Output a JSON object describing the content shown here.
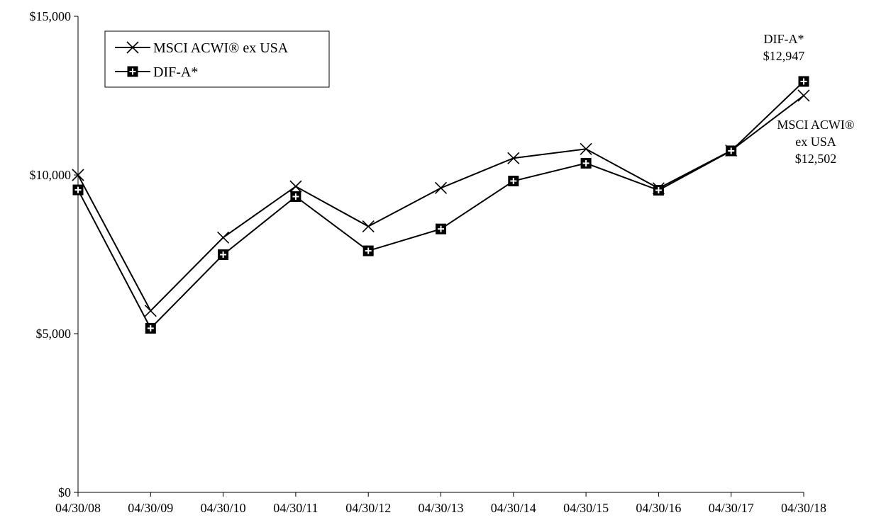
{
  "chart_data": {
    "type": "line",
    "title": "",
    "xlabel": "",
    "ylabel": "",
    "x": [
      "04/30/08",
      "04/30/09",
      "04/30/10",
      "04/30/11",
      "04/30/12",
      "04/30/13",
      "04/30/14",
      "04/30/15",
      "04/30/16",
      "04/30/17",
      "04/30/18"
    ],
    "ylim": [
      0,
      15000
    ],
    "yticks": [
      0,
      5000,
      10000,
      15000
    ],
    "ytick_labels": [
      "$0",
      "$5,000",
      "$10,000",
      "$15,000"
    ],
    "grid": false,
    "legend_position": "top-left",
    "series": [
      {
        "name": "MSCI ACWI® ex USA",
        "marker": "x",
        "color": "#000000",
        "values": [
          10000,
          5720,
          8030,
          9640,
          8380,
          9590,
          10530,
          10820,
          9580,
          10770,
          12502
        ]
      },
      {
        "name": "DIF-A*",
        "marker": "square-plus",
        "color": "#000000",
        "values": [
          9530,
          5170,
          7490,
          9320,
          7610,
          8300,
          9810,
          10370,
          9520,
          10760,
          12947
        ]
      }
    ],
    "annotations": [
      {
        "series": 1,
        "lines": [
          "DIF-A*",
          "$12,947"
        ]
      },
      {
        "series": 0,
        "lines": [
          "MSCI ACWI®",
          "ex USA",
          "$12,502"
        ]
      }
    ]
  }
}
